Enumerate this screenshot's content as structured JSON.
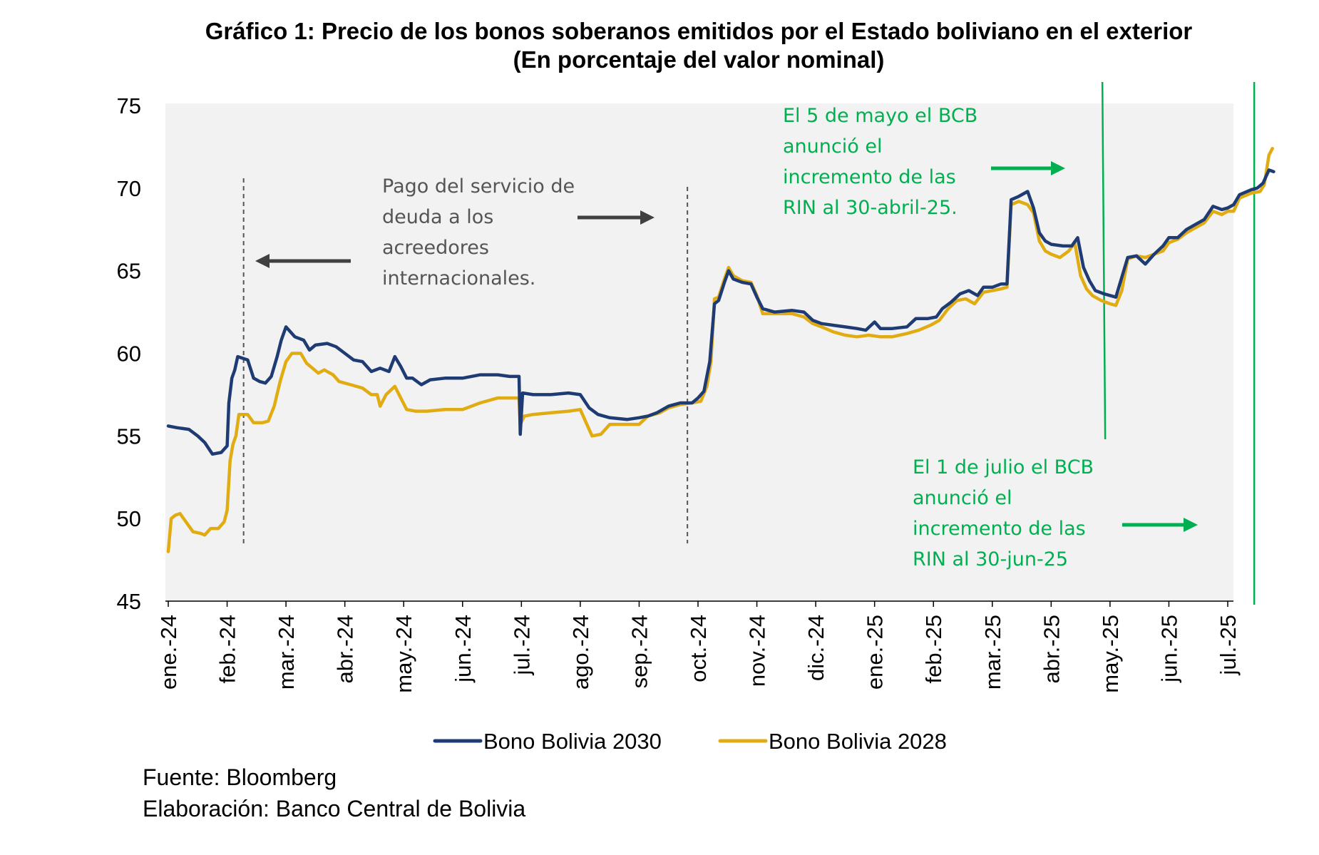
{
  "chart_data": {
    "type": "line",
    "title": "Gráfico 1: Precio de los bonos soberanos emitidos por el Estado boliviano en el exterior",
    "subtitle": "(En porcentaje del valor nominal)",
    "xlabel": "",
    "ylabel": "",
    "ylim": [
      45,
      75
    ],
    "yticks": [
      45,
      50,
      55,
      60,
      65,
      70,
      75
    ],
    "categories": [
      "ene.-24",
      "feb.-24",
      "mar.-24",
      "abr.-24",
      "may.-24",
      "jun.-24",
      "jul.-24",
      "ago.-24",
      "sep.-24",
      "oct.-24",
      "nov.-24",
      "dic.-24",
      "ene.-25",
      "feb.-25",
      "mar.-25",
      "abr.-25",
      "may.-25",
      "jun.-25",
      "jul.-25"
    ],
    "grid": false,
    "legend_position": "bottom",
    "series": [
      {
        "name": "Bono Bolivia 2030",
        "color": "#1f3b73",
        "points": [
          [
            0,
            55.6
          ],
          [
            0.15,
            55.5
          ],
          [
            0.35,
            55.4
          ],
          [
            0.5,
            55.0
          ],
          [
            0.62,
            54.6
          ],
          [
            0.75,
            53.9
          ],
          [
            0.9,
            54.0
          ],
          [
            1.0,
            54.4
          ],
          [
            1.03,
            57.0
          ],
          [
            1.08,
            58.5
          ],
          [
            1.13,
            59.0
          ],
          [
            1.18,
            59.8
          ],
          [
            1.35,
            59.6
          ],
          [
            1.45,
            58.5
          ],
          [
            1.55,
            58.3
          ],
          [
            1.65,
            58.2
          ],
          [
            1.75,
            58.6
          ],
          [
            1.85,
            59.8
          ],
          [
            1.92,
            60.8
          ],
          [
            2.0,
            61.6
          ],
          [
            2.15,
            61.0
          ],
          [
            2.3,
            60.8
          ],
          [
            2.4,
            60.2
          ],
          [
            2.5,
            60.5
          ],
          [
            2.7,
            60.6
          ],
          [
            2.85,
            60.4
          ],
          [
            3.0,
            60.0
          ],
          [
            3.15,
            59.6
          ],
          [
            3.3,
            59.5
          ],
          [
            3.45,
            58.9
          ],
          [
            3.6,
            59.1
          ],
          [
            3.75,
            58.9
          ],
          [
            3.85,
            59.8
          ],
          [
            3.95,
            59.2
          ],
          [
            4.05,
            58.5
          ],
          [
            4.15,
            58.5
          ],
          [
            4.3,
            58.1
          ],
          [
            4.45,
            58.4
          ],
          [
            4.7,
            58.5
          ],
          [
            5.0,
            58.5
          ],
          [
            5.3,
            58.7
          ],
          [
            5.6,
            58.7
          ],
          [
            5.8,
            58.6
          ],
          [
            5.96,
            58.6
          ],
          [
            5.98,
            55.1
          ],
          [
            6.02,
            57.6
          ],
          [
            6.2,
            57.5
          ],
          [
            6.5,
            57.5
          ],
          [
            6.8,
            57.6
          ],
          [
            7.0,
            57.5
          ],
          [
            7.15,
            56.7
          ],
          [
            7.3,
            56.3
          ],
          [
            7.5,
            56.1
          ],
          [
            7.8,
            56.0
          ],
          [
            8.0,
            56.1
          ],
          [
            8.15,
            56.2
          ],
          [
            8.3,
            56.4
          ],
          [
            8.5,
            56.8
          ],
          [
            8.7,
            57.0
          ],
          [
            8.9,
            57.0
          ],
          [
            9.0,
            57.3
          ],
          [
            9.1,
            57.7
          ],
          [
            9.2,
            59.5
          ],
          [
            9.28,
            63.0
          ],
          [
            9.35,
            63.2
          ],
          [
            9.45,
            64.3
          ],
          [
            9.52,
            65.0
          ],
          [
            9.6,
            64.5
          ],
          [
            9.75,
            64.3
          ],
          [
            9.9,
            64.2
          ],
          [
            10.0,
            63.4
          ],
          [
            10.1,
            62.7
          ],
          [
            10.3,
            62.5
          ],
          [
            10.6,
            62.6
          ],
          [
            10.8,
            62.5
          ],
          [
            10.95,
            62.0
          ],
          [
            11.1,
            61.8
          ],
          [
            11.3,
            61.7
          ],
          [
            11.5,
            61.6
          ],
          [
            11.7,
            61.5
          ],
          [
            11.85,
            61.4
          ],
          [
            12.0,
            61.9
          ],
          [
            12.1,
            61.5
          ],
          [
            12.3,
            61.5
          ],
          [
            12.55,
            61.6
          ],
          [
            12.7,
            62.1
          ],
          [
            12.9,
            62.1
          ],
          [
            13.05,
            62.2
          ],
          [
            13.15,
            62.7
          ],
          [
            13.3,
            63.1
          ],
          [
            13.45,
            63.6
          ],
          [
            13.6,
            63.8
          ],
          [
            13.75,
            63.5
          ],
          [
            13.85,
            64.0
          ],
          [
            14.0,
            64.0
          ],
          [
            14.15,
            64.2
          ],
          [
            14.25,
            64.2
          ],
          [
            14.32,
            69.3
          ],
          [
            14.45,
            69.5
          ],
          [
            14.6,
            69.8
          ],
          [
            14.7,
            68.8
          ],
          [
            14.8,
            67.3
          ],
          [
            14.9,
            66.8
          ],
          [
            15.0,
            66.6
          ],
          [
            15.2,
            66.5
          ],
          [
            15.35,
            66.5
          ],
          [
            15.45,
            67.0
          ],
          [
            15.55,
            65.2
          ],
          [
            15.65,
            64.4
          ],
          [
            15.75,
            63.8
          ],
          [
            15.9,
            63.6
          ],
          [
            16.0,
            63.5
          ],
          [
            16.1,
            63.4
          ],
          [
            16.2,
            64.6
          ],
          [
            16.3,
            65.8
          ],
          [
            16.45,
            65.9
          ],
          [
            16.6,
            65.4
          ],
          [
            16.75,
            66.0
          ],
          [
            16.9,
            66.5
          ],
          [
            17.0,
            67.0
          ],
          [
            17.15,
            67.0
          ],
          [
            17.3,
            67.5
          ],
          [
            17.45,
            67.8
          ],
          [
            17.6,
            68.1
          ],
          [
            17.75,
            68.9
          ],
          [
            17.9,
            68.7
          ],
          [
            18.0,
            68.8
          ],
          [
            18.1,
            69.0
          ],
          [
            18.2,
            69.6
          ],
          [
            18.4,
            69.9
          ],
          [
            18.5,
            70.0
          ],
          [
            18.6,
            70.3
          ],
          [
            18.7,
            71.1
          ],
          [
            18.78,
            71.0
          ]
        ]
      },
      {
        "name": "Bono Bolivia 2028",
        "color": "#e0ac12",
        "points": [
          [
            0,
            48.0
          ],
          [
            0.05,
            50.0
          ],
          [
            0.12,
            50.2
          ],
          [
            0.2,
            50.3
          ],
          [
            0.3,
            49.8
          ],
          [
            0.42,
            49.2
          ],
          [
            0.55,
            49.1
          ],
          [
            0.62,
            49.0
          ],
          [
            0.72,
            49.4
          ],
          [
            0.85,
            49.4
          ],
          [
            0.95,
            49.8
          ],
          [
            1.0,
            50.5
          ],
          [
            1.05,
            53.5
          ],
          [
            1.1,
            54.5
          ],
          [
            1.15,
            55.0
          ],
          [
            1.2,
            56.3
          ],
          [
            1.35,
            56.3
          ],
          [
            1.45,
            55.8
          ],
          [
            1.6,
            55.8
          ],
          [
            1.7,
            55.9
          ],
          [
            1.8,
            56.8
          ],
          [
            1.9,
            58.3
          ],
          [
            2.0,
            59.5
          ],
          [
            2.1,
            60.0
          ],
          [
            2.25,
            60.0
          ],
          [
            2.35,
            59.4
          ],
          [
            2.45,
            59.1
          ],
          [
            2.55,
            58.8
          ],
          [
            2.65,
            59.0
          ],
          [
            2.8,
            58.7
          ],
          [
            2.9,
            58.3
          ],
          [
            3.1,
            58.1
          ],
          [
            3.3,
            57.9
          ],
          [
            3.45,
            57.5
          ],
          [
            3.55,
            57.5
          ],
          [
            3.6,
            56.8
          ],
          [
            3.7,
            57.5
          ],
          [
            3.85,
            58.0
          ],
          [
            3.95,
            57.3
          ],
          [
            4.05,
            56.6
          ],
          [
            4.2,
            56.5
          ],
          [
            4.4,
            56.5
          ],
          [
            4.7,
            56.6
          ],
          [
            5.0,
            56.6
          ],
          [
            5.3,
            57.0
          ],
          [
            5.6,
            57.3
          ],
          [
            5.96,
            57.3
          ],
          [
            5.98,
            55.7
          ],
          [
            6.05,
            56.2
          ],
          [
            6.2,
            56.3
          ],
          [
            6.5,
            56.4
          ],
          [
            6.8,
            56.5
          ],
          [
            7.0,
            56.6
          ],
          [
            7.1,
            55.8
          ],
          [
            7.2,
            55.0
          ],
          [
            7.35,
            55.1
          ],
          [
            7.5,
            55.7
          ],
          [
            7.8,
            55.7
          ],
          [
            8.0,
            55.7
          ],
          [
            8.15,
            56.2
          ],
          [
            8.35,
            56.4
          ],
          [
            8.5,
            56.7
          ],
          [
            8.7,
            56.9
          ],
          [
            8.9,
            57.0
          ],
          [
            9.05,
            57.1
          ],
          [
            9.15,
            58.0
          ],
          [
            9.22,
            59.5
          ],
          [
            9.28,
            63.3
          ],
          [
            9.35,
            63.4
          ],
          [
            9.45,
            64.5
          ],
          [
            9.52,
            65.2
          ],
          [
            9.6,
            64.7
          ],
          [
            9.75,
            64.4
          ],
          [
            9.9,
            64.3
          ],
          [
            10.0,
            63.5
          ],
          [
            10.1,
            62.4
          ],
          [
            10.3,
            62.4
          ],
          [
            10.6,
            62.4
          ],
          [
            10.8,
            62.2
          ],
          [
            10.95,
            61.8
          ],
          [
            11.1,
            61.6
          ],
          [
            11.3,
            61.3
          ],
          [
            11.5,
            61.1
          ],
          [
            11.7,
            61.0
          ],
          [
            11.9,
            61.1
          ],
          [
            12.1,
            61.0
          ],
          [
            12.3,
            61.0
          ],
          [
            12.55,
            61.2
          ],
          [
            12.75,
            61.4
          ],
          [
            12.95,
            61.7
          ],
          [
            13.1,
            62.0
          ],
          [
            13.25,
            62.7
          ],
          [
            13.4,
            63.2
          ],
          [
            13.55,
            63.3
          ],
          [
            13.7,
            63.0
          ],
          [
            13.85,
            63.7
          ],
          [
            14.0,
            63.8
          ],
          [
            14.15,
            63.9
          ],
          [
            14.25,
            64.0
          ],
          [
            14.32,
            69.0
          ],
          [
            14.45,
            69.2
          ],
          [
            14.6,
            69.0
          ],
          [
            14.7,
            68.5
          ],
          [
            14.8,
            66.8
          ],
          [
            14.9,
            66.2
          ],
          [
            15.0,
            66.0
          ],
          [
            15.15,
            65.8
          ],
          [
            15.3,
            66.2
          ],
          [
            15.4,
            66.7
          ],
          [
            15.5,
            64.7
          ],
          [
            15.6,
            63.9
          ],
          [
            15.7,
            63.5
          ],
          [
            15.85,
            63.2
          ],
          [
            16.0,
            63.0
          ],
          [
            16.1,
            62.9
          ],
          [
            16.2,
            63.8
          ],
          [
            16.3,
            65.7
          ],
          [
            16.45,
            65.9
          ],
          [
            16.6,
            65.8
          ],
          [
            16.75,
            66.0
          ],
          [
            16.9,
            66.2
          ],
          [
            17.0,
            66.7
          ],
          [
            17.15,
            66.9
          ],
          [
            17.3,
            67.3
          ],
          [
            17.45,
            67.6
          ],
          [
            17.6,
            67.9
          ],
          [
            17.75,
            68.6
          ],
          [
            17.9,
            68.4
          ],
          [
            18.0,
            68.6
          ],
          [
            18.1,
            68.6
          ],
          [
            18.2,
            69.4
          ],
          [
            18.4,
            69.7
          ],
          [
            18.55,
            69.8
          ],
          [
            18.62,
            70.2
          ],
          [
            18.7,
            72.0
          ],
          [
            18.76,
            72.4
          ]
        ]
      }
    ],
    "annotations": [
      {
        "id": "debt",
        "lines": [
          "Pago del servicio de",
          "deuda a los",
          "acreedores",
          "internacionales."
        ],
        "color": "#555555"
      },
      {
        "id": "may",
        "lines": [
          "El 5 de mayo el BCB",
          "anunció el",
          "incremento de las",
          "RIN al 30-abril-25."
        ],
        "color": "#00b050"
      },
      {
        "id": "jul",
        "lines": [
          "El 1 de julio el BCB",
          "anunció el",
          "incremento de las",
          "RIN al 30-jun-25"
        ],
        "color": "#00b050"
      }
    ],
    "reference_lines": [
      {
        "style": "dashed",
        "color": "#555555",
        "x": 1.28
      },
      {
        "style": "dashed",
        "color": "#555555",
        "x": 8.82
      },
      {
        "style": "solid",
        "color": "#00b050",
        "x": 15.87
      },
      {
        "style": "solid",
        "color": "#00b050",
        "x": 18.45
      }
    ]
  },
  "footer": {
    "source": "Fuente: Bloomberg",
    "elaboration": "Elaboración: Banco Central de Bolivia"
  }
}
